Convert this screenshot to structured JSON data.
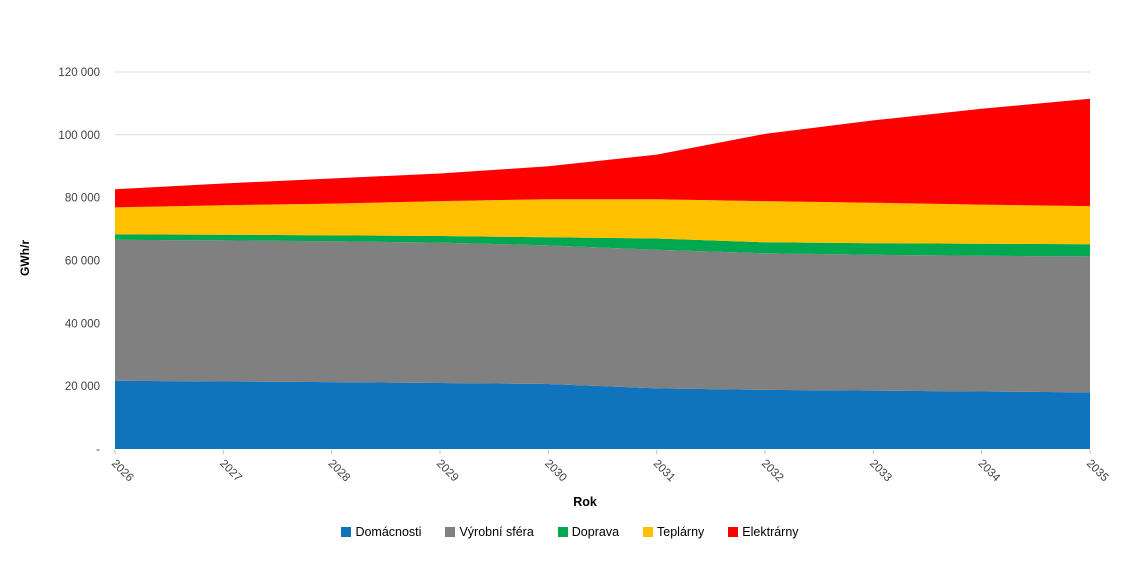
{
  "chart_data": {
    "type": "area",
    "stacked": true,
    "title": "",
    "xlabel": "Rok",
    "ylabel": "GWh/r",
    "categories": [
      "2026",
      "2027",
      "2028",
      "2029",
      "2030",
      "2031",
      "2032",
      "2033",
      "2034",
      "2035"
    ],
    "series": [
      {
        "name": "Domácnosti",
        "color": "#1074BD",
        "values": [
          21700,
          21500,
          21300,
          21000,
          20700,
          19300,
          18800,
          18600,
          18300,
          18000
        ]
      },
      {
        "name": "Výrobní sféra",
        "color": "#808080",
        "values": [
          44900,
          44900,
          44800,
          44700,
          44100,
          44100,
          43500,
          43200,
          43200,
          43300
        ]
      },
      {
        "name": "Doprava",
        "color": "#00A850",
        "values": [
          1700,
          1800,
          1900,
          2100,
          2600,
          3600,
          3500,
          3700,
          3800,
          3900
        ]
      },
      {
        "name": "Teplárny",
        "color": "#FFC000",
        "values": [
          8600,
          9400,
          10100,
          11100,
          12100,
          12500,
          13100,
          12900,
          12500,
          12100
        ]
      },
      {
        "name": "Elektrárny",
        "color": "#FF0000",
        "values": [
          5800,
          6900,
          8000,
          8800,
          10500,
          14200,
          21400,
          26200,
          30500,
          34200
        ]
      }
    ],
    "stacked_totals": [
      82700,
      84500,
      86100,
      87700,
      90000,
      93700,
      100300,
      104600,
      108300,
      111500
    ],
    "ylim": [
      0,
      120000
    ],
    "y_ticks": [
      {
        "value": 120000,
        "label": "120 000"
      },
      {
        "value": 100000,
        "label": "100 000"
      },
      {
        "value": 80000,
        "label": "80 000"
      },
      {
        "value": 60000,
        "label": "60 000"
      },
      {
        "value": 40000,
        "label": "40 000"
      },
      {
        "value": 20000,
        "label": "20 000"
      },
      {
        "value": 0,
        "label": "-"
      }
    ],
    "grid": true,
    "legend_position": "bottom",
    "colors": {
      "gridline": "#D9D9D9",
      "tick": "#BFBFBF",
      "axis_text": "#404040",
      "legend_text": "#000000",
      "background": "#FFFFFF"
    }
  }
}
